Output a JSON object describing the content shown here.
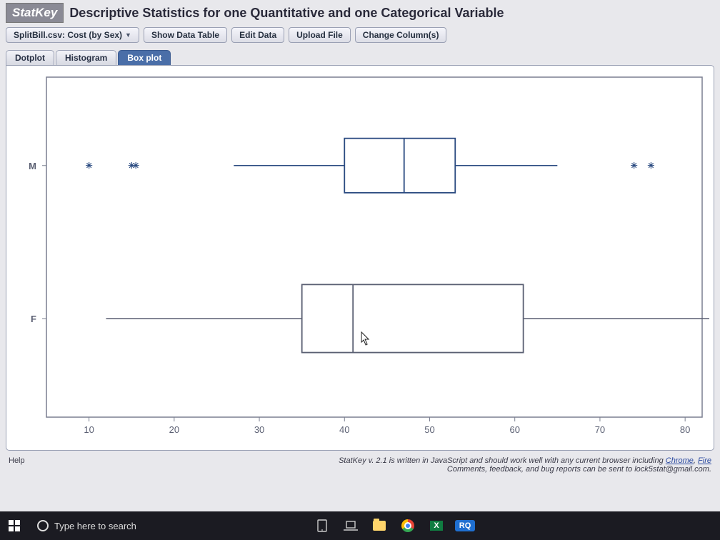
{
  "logo": "StatKey",
  "page_title": "Descriptive Statistics for one Quantitative and one Categorical Variable",
  "toolbar": {
    "dataset": "SplitBill.csv: Cost (by Sex)",
    "show_table": "Show Data Table",
    "edit": "Edit Data",
    "upload": "Upload File",
    "change_cols": "Change Column(s)"
  },
  "tabs": {
    "dotplot": "Dotplot",
    "histogram": "Histogram",
    "boxplot": "Box plot",
    "active": "boxplot"
  },
  "chart": {
    "type": "boxplot",
    "x_min": 5,
    "x_max": 82,
    "x_ticks": [
      10,
      20,
      30,
      40,
      50,
      60,
      70,
      80
    ],
    "axis_color": "#7a7f90",
    "tick_label_color": "#5a5f72",
    "tick_fontsize": 13,
    "background": "#ffffff",
    "categories": [
      {
        "label": "M",
        "y_center": 0.26,
        "box_color": "#2a4a80",
        "box_fill": "#ffffff",
        "whisker_min": 27,
        "q1": 40,
        "median": 47,
        "q3": 53,
        "whisker_max": 65,
        "outliers": [
          10,
          15,
          15.5,
          74,
          76
        ],
        "box_height": 0.16
      },
      {
        "label": "F",
        "y_center": 0.71,
        "box_color": "#5a5f72",
        "box_fill": "#ffffff",
        "whisker_min": 12,
        "q1": 35,
        "median": 41,
        "q3": 61,
        "whisker_max": 84,
        "outliers": [],
        "box_height": 0.2
      }
    ]
  },
  "footer": {
    "help": "Help",
    "credit_line1": "StatKey v. 2.1 is written in JavaScript and should work well with any current browser including ",
    "credit_link1": "Chrome",
    "credit_link2": "Fire",
    "credit_line2": "Comments, feedback, and bug reports can be sent to ",
    "email": "lock5stat@gmail.com"
  },
  "taskbar": {
    "search_placeholder": "Type here to search",
    "rq": "RQ"
  }
}
